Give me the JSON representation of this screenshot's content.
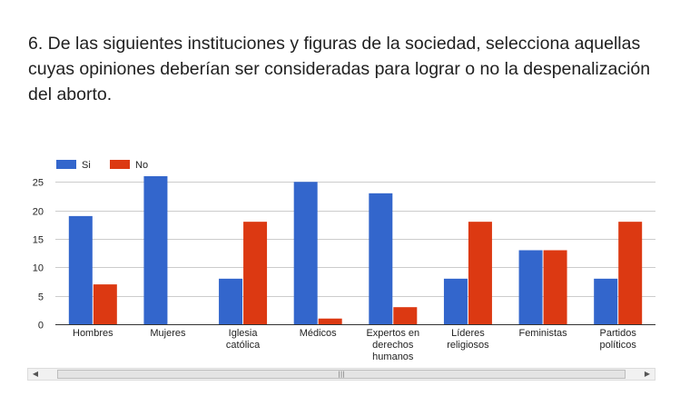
{
  "question": {
    "text": "6. De las siguientes instituciones y figuras de la sociedad, selecciona aquellas cuyas opiniones deberían ser consideradas para lograr o no la despenalización del aborto."
  },
  "chart_data": {
    "type": "bar",
    "categories": [
      "Hombres",
      "Mujeres",
      "Iglesia católica",
      "Médicos",
      "Expertos en derechos humanos",
      "Líderes religiosos",
      "Feministas",
      "Partidos políticos"
    ],
    "category_lines": [
      [
        "Hombres"
      ],
      [
        "Mujeres"
      ],
      [
        "Iglesia",
        "católica"
      ],
      [
        "Médicos"
      ],
      [
        "Expertos en",
        "derechos",
        "humanos"
      ],
      [
        "Líderes",
        "religiosos"
      ],
      [
        "Feministas"
      ],
      [
        "Partidos",
        "políticos"
      ]
    ],
    "series": [
      {
        "name": "Si",
        "color": "#3366cc",
        "values": [
          19,
          26,
          8,
          25,
          23,
          8,
          13,
          8
        ]
      },
      {
        "name": "No",
        "color": "#dc3912",
        "values": [
          7,
          0,
          18,
          1,
          3,
          18,
          13,
          18
        ]
      }
    ],
    "ylim": [
      0,
      26
    ],
    "yticks": [
      0,
      5,
      10,
      15,
      20,
      25
    ],
    "grid": true,
    "legend_position": "top-left",
    "title": "",
    "xlabel": "",
    "ylabel": ""
  },
  "scrollbar": {
    "left_arrow": "◀",
    "right_arrow": "▶",
    "grip": "|||"
  }
}
